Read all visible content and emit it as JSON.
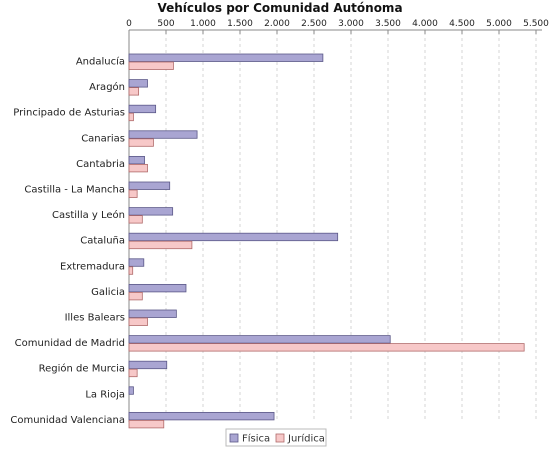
{
  "chart_data": {
    "type": "bar",
    "orientation": "horizontal",
    "title": "Vehículos por Comunidad Autónoma",
    "xlabel": "",
    "ylabel": "",
    "xlim": [
      0,
      5500
    ],
    "x_ticks": [
      "0",
      "500",
      "1.000",
      "1.500",
      "2.000",
      "2.500",
      "3.000",
      "3.500",
      "4.000",
      "4.500",
      "5.000",
      "5.500"
    ],
    "x_tick_values": [
      0,
      500,
      1000,
      1500,
      2000,
      2500,
      3000,
      3500,
      4000,
      4500,
      5000,
      5500
    ],
    "axis_position": "top",
    "grid": true,
    "legend_position": "bottom",
    "categories": [
      "Andalucía",
      "Aragón",
      "Principado de Asturias",
      "Canarias",
      "Cantabria",
      "Castilla - La Mancha",
      "Castilla y León",
      "Cataluña",
      "Extremadura",
      "Galicia",
      "Illes Balears",
      "Comunidad de Madrid",
      "Región de Murcia",
      "La Rioja",
      "Comunidad Valenciana"
    ],
    "series": [
      {
        "name": "Física",
        "color": "#a9a5d2",
        "stroke": "#5b5888",
        "values": [
          2620,
          250,
          360,
          920,
          210,
          550,
          590,
          2820,
          200,
          770,
          640,
          3530,
          510,
          60,
          1960
        ]
      },
      {
        "name": "Jurídica",
        "color": "#f7c8c8",
        "stroke": "#b06a6a",
        "values": [
          600,
          130,
          60,
          330,
          250,
          110,
          180,
          850,
          50,
          180,
          250,
          5340,
          110,
          0,
          470
        ]
      }
    ]
  }
}
